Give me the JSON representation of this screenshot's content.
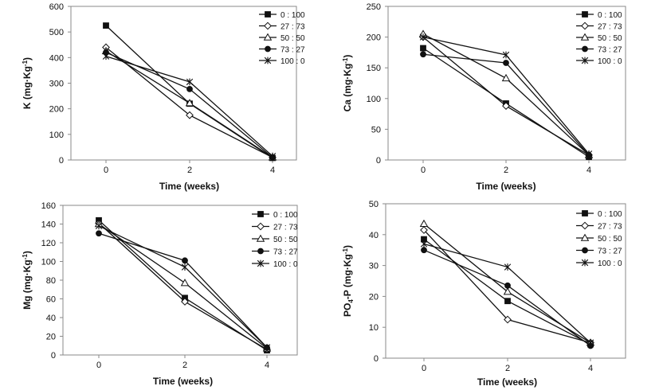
{
  "chart_data": [
    {
      "type": "line",
      "title": "",
      "xlabel": "Time (weeks)",
      "ylabel": "K (mg·Kg",
      "ylabel_sup": "-1",
      "ylabel_tail": ")",
      "x": [
        0,
        2,
        4
      ],
      "xticks": [
        "0",
        "2",
        "4"
      ],
      "ylim": [
        0,
        600
      ],
      "yticks": [
        "0",
        "100",
        "200",
        "300",
        "400",
        "500",
        "600"
      ],
      "legend_position": "top-right",
      "series": [
        {
          "name": "0 : 100",
          "marker": "square",
          "values": [
            525,
            220,
            8
          ]
        },
        {
          "name": "27 : 73",
          "marker": "diamond",
          "values": [
            440,
            175,
            10
          ]
        },
        {
          "name": "50 : 50",
          "marker": "triangle",
          "values": [
            425,
            222,
            10
          ]
        },
        {
          "name": "73 : 27",
          "marker": "circle",
          "values": [
            420,
            277,
            10
          ]
        },
        {
          "name": "100 : 0",
          "marker": "star",
          "values": [
            405,
            305,
            15
          ]
        }
      ]
    },
    {
      "type": "line",
      "title": "",
      "xlabel": "Time (weeks)",
      "ylabel": "Ca (mg·Kg",
      "ylabel_sup": "-1",
      "ylabel_tail": ")",
      "x": [
        0,
        2,
        4
      ],
      "xticks": [
        "0",
        "2",
        "4"
      ],
      "ylim": [
        0,
        250
      ],
      "yticks": [
        "0",
        "50",
        "100",
        "150",
        "200",
        "250"
      ],
      "legend_position": "top-right",
      "series": [
        {
          "name": "0 : 100",
          "marker": "square",
          "values": [
            182,
            92,
            5
          ]
        },
        {
          "name": "27 : 73",
          "marker": "diamond",
          "values": [
            200,
            88,
            8
          ]
        },
        {
          "name": "50 : 50",
          "marker": "triangle",
          "values": [
            205,
            133,
            8
          ]
        },
        {
          "name": "73 : 27",
          "marker": "circle",
          "values": [
            172,
            158,
            8
          ]
        },
        {
          "name": "100 : 0",
          "marker": "star",
          "values": [
            200,
            171,
            10
          ]
        }
      ]
    },
    {
      "type": "line",
      "title": "",
      "xlabel": "Time (weeks)",
      "ylabel": "Mg (mg·Kg",
      "ylabel_sup": "-1",
      "ylabel_tail": ")",
      "x": [
        0,
        2,
        4
      ],
      "xticks": [
        "0",
        "2",
        "4"
      ],
      "ylim": [
        0,
        160
      ],
      "yticks": [
        "0",
        "20",
        "40",
        "60",
        "80",
        "100",
        "120",
        "140",
        "160"
      ],
      "legend_position": "top-right",
      "series": [
        {
          "name": "0 : 100",
          "marker": "square",
          "values": [
            144,
            61,
            5
          ]
        },
        {
          "name": "27 : 73",
          "marker": "diamond",
          "values": [
            141,
            57,
            6
          ]
        },
        {
          "name": "50 : 50",
          "marker": "triangle",
          "values": [
            140,
            77,
            7
          ]
        },
        {
          "name": "73 : 27",
          "marker": "circle",
          "values": [
            130,
            101,
            8
          ]
        },
        {
          "name": "100 : 0",
          "marker": "star",
          "values": [
            138,
            94,
            8
          ]
        }
      ]
    },
    {
      "type": "line",
      "title": "",
      "xlabel": "Time (weeks)",
      "ylabel": "PO",
      "ylabel_sub": "4",
      "ylabel_tail": "-P (mg·Kg",
      "ylabel_sup": "-1",
      "ylabel_end": ")",
      "x": [
        0,
        2,
        4
      ],
      "xticks": [
        "0",
        "2",
        "4"
      ],
      "ylim": [
        0,
        50
      ],
      "yticks": [
        "0",
        "10",
        "20",
        "30",
        "40",
        "50"
      ],
      "legend_position": "top-right",
      "series": [
        {
          "name": "0 : 100",
          "marker": "square",
          "values": [
            38.5,
            18.5,
            4.5
          ]
        },
        {
          "name": "27 : 73",
          "marker": "diamond",
          "values": [
            41.5,
            12.5,
            5
          ]
        },
        {
          "name": "50 : 50",
          "marker": "triangle",
          "values": [
            43.5,
            21.5,
            5
          ]
        },
        {
          "name": "73 : 27",
          "marker": "circle",
          "values": [
            35,
            23.5,
            4
          ]
        },
        {
          "name": "100 : 0",
          "marker": "star",
          "values": [
            37,
            29.5,
            5
          ]
        }
      ]
    }
  ]
}
